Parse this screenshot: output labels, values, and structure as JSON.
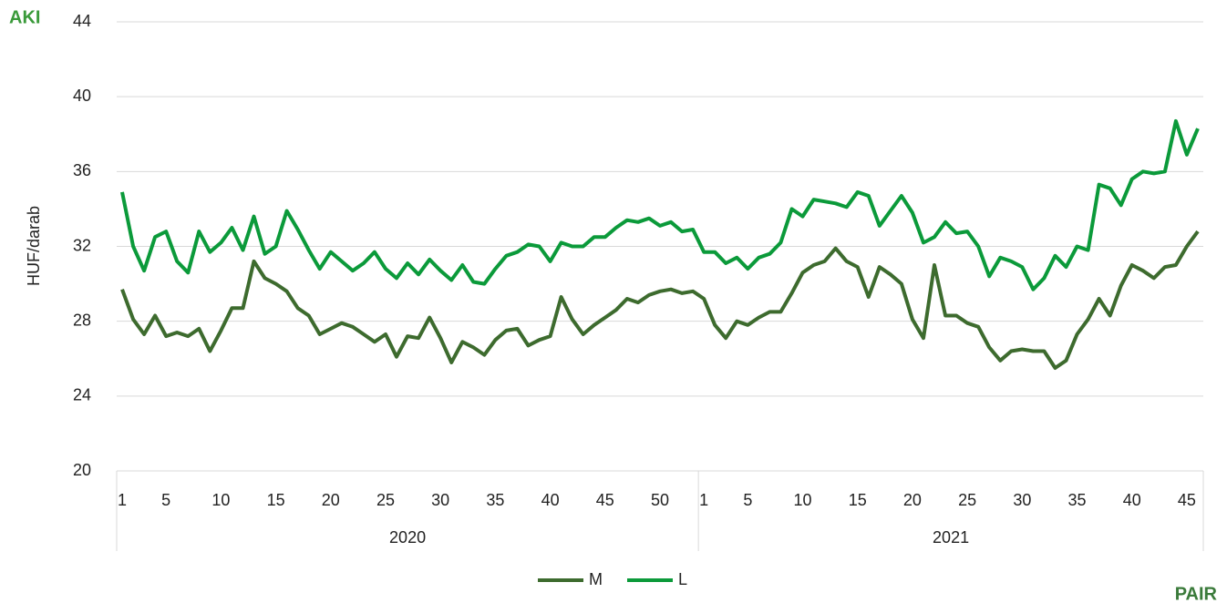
{
  "chart_data": {
    "type": "line",
    "ylabel": "HUF/darab",
    "logos": [
      "AKI",
      "PAIR"
    ],
    "categories": [
      "1",
      null,
      null,
      null,
      "5",
      null,
      null,
      null,
      null,
      "10",
      null,
      null,
      null,
      null,
      "15",
      null,
      null,
      null,
      null,
      "20",
      null,
      null,
      null,
      null,
      "25",
      null,
      null,
      null,
      null,
      "30",
      null,
      null,
      null,
      null,
      "35",
      null,
      null,
      null,
      null,
      "40",
      null,
      null,
      null,
      null,
      "45",
      null,
      null,
      null,
      null,
      "50",
      null,
      null,
      null,
      "1",
      null,
      null,
      null,
      "5",
      null,
      null,
      null,
      null,
      "10",
      null,
      null,
      null,
      null,
      "15",
      null,
      null,
      null,
      null,
      "20",
      null,
      null,
      null,
      null,
      "25",
      null,
      null,
      null,
      null,
      "30",
      null,
      null,
      null,
      null,
      "35",
      null,
      null,
      null,
      null,
      "40",
      null,
      null,
      null,
      null,
      "45",
      null
    ],
    "groups": [
      {
        "label": "2020",
        "count": 53
      },
      {
        "label": "2021",
        "count": 46
      }
    ],
    "series": [
      {
        "name": "M",
        "color": "#3d6b2e",
        "values": [
          29.7,
          28.1,
          27.3,
          28.3,
          27.2,
          27.4,
          27.2,
          27.6,
          26.4,
          27.5,
          28.7,
          28.7,
          31.2,
          30.3,
          30.0,
          29.6,
          28.7,
          28.3,
          27.3,
          27.6,
          27.9,
          27.7,
          27.3,
          26.9,
          27.3,
          26.1,
          27.2,
          27.1,
          28.2,
          27.1,
          25.8,
          26.9,
          26.6,
          26.2,
          27.0,
          27.5,
          27.6,
          26.7,
          27.0,
          27.2,
          29.3,
          28.1,
          27.3,
          27.8,
          28.2,
          28.6,
          29.2,
          29.0,
          29.4,
          29.6,
          29.7,
          29.5,
          29.6,
          29.2,
          27.8,
          27.1,
          28.0,
          27.8,
          28.2,
          28.5,
          28.5,
          29.5,
          30.6,
          31.0,
          31.2,
          31.9,
          31.2,
          30.9,
          29.3,
          30.9,
          30.5,
          30.0,
          28.1,
          27.1,
          31.0,
          28.3,
          28.3,
          27.9,
          27.7,
          26.6,
          25.9,
          26.4,
          26.5,
          26.4,
          26.4,
          25.5,
          25.9,
          27.3,
          28.1,
          29.2,
          28.3,
          29.9,
          31.0,
          30.7,
          30.3,
          30.9,
          31.0,
          32.0,
          32.8
        ]
      },
      {
        "name": "L",
        "color": "#0b9a3a",
        "values": [
          34.9,
          32.0,
          30.7,
          32.5,
          32.8,
          31.2,
          30.6,
          32.8,
          31.7,
          32.2,
          33.0,
          31.8,
          33.6,
          31.6,
          32.0,
          33.9,
          32.9,
          31.8,
          30.8,
          31.7,
          31.2,
          30.7,
          31.1,
          31.7,
          30.8,
          30.3,
          31.1,
          30.5,
          31.3,
          30.7,
          30.2,
          31.0,
          30.1,
          30.0,
          30.8,
          31.5,
          31.7,
          32.1,
          32.0,
          31.2,
          32.2,
          32.0,
          32.0,
          32.5,
          32.5,
          33.0,
          33.4,
          33.3,
          33.5,
          33.1,
          33.3,
          32.8,
          32.9,
          31.7,
          31.7,
          31.1,
          31.4,
          30.8,
          31.4,
          31.6,
          32.2,
          34.0,
          33.6,
          34.5,
          34.4,
          34.3,
          34.1,
          34.9,
          34.7,
          33.1,
          33.9,
          34.7,
          33.8,
          32.2,
          32.5,
          33.3,
          32.7,
          32.8,
          32.0,
          30.4,
          31.4,
          31.2,
          30.9,
          29.7,
          30.3,
          31.5,
          30.9,
          32.0,
          31.8,
          35.3,
          35.1,
          34.2,
          35.6,
          36.0,
          35.9,
          36.0,
          38.7,
          36.9,
          38.3
        ]
      }
    ],
    "ylim": [
      20,
      44
    ],
    "yticks": [
      20,
      24,
      28,
      32,
      36,
      40,
      44
    ],
    "grid": true,
    "legend": "bottom"
  }
}
